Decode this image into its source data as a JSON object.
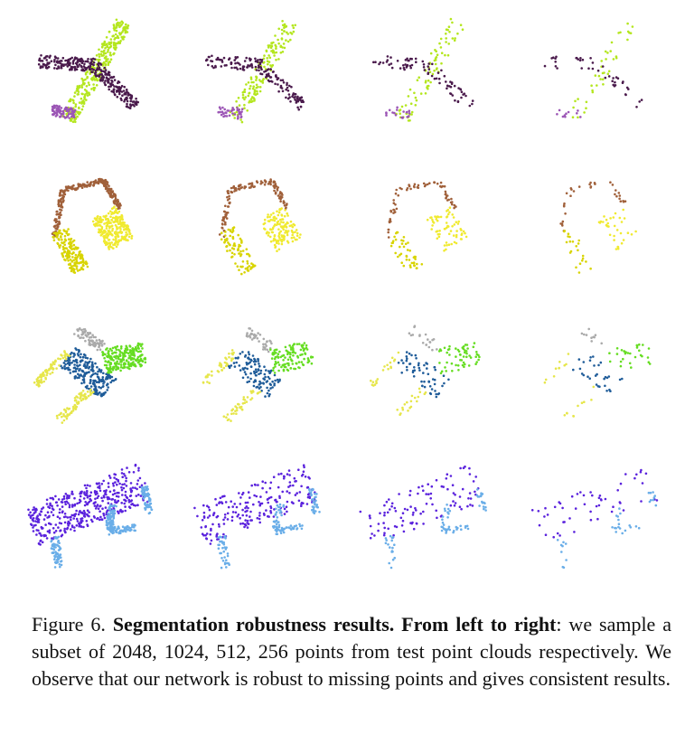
{
  "figure": {
    "label": "Figure 6.",
    "bold_title": "Segmentation robustness results. From left to right",
    "text": ": we sample a subset of 2048, 1024, 512, 256 points from test point clouds respectively. We observe that our network is robust to missing points and gives consistent results."
  }
}
